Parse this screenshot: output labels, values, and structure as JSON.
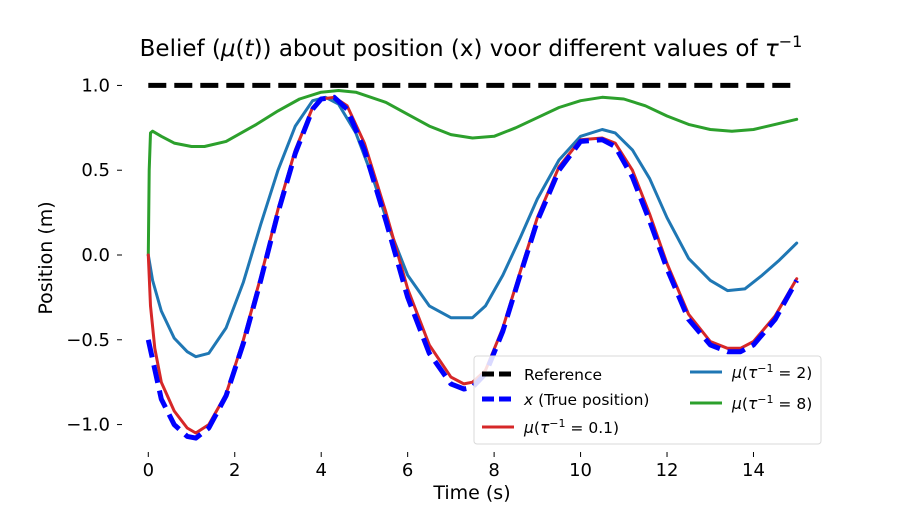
{
  "chart_data": {
    "type": "line",
    "title": "Belief (μ(t)) about position (x) voor different values of τ⁻¹",
    "xlabel": "Time (s)",
    "ylabel": "Position (m)",
    "xlim": [
      -0.4,
      15.4
    ],
    "ylim": [
      -1.15,
      1.15
    ],
    "xticks": [
      0,
      2,
      4,
      6,
      8,
      10,
      12,
      14
    ],
    "xtick_labels": [
      "0",
      "2",
      "4",
      "6",
      "8",
      "10",
      "12",
      "14"
    ],
    "yticks": [
      1.0,
      0.5,
      0.0,
      -0.5,
      -1.0
    ],
    "ytick_labels": [
      "1.0",
      "0.5",
      "0.0",
      "−0.5",
      "−1.0"
    ],
    "grid": false,
    "legend_position": "lower-right",
    "series": [
      {
        "name": "Reference",
        "color": "#000000",
        "style": "dashed",
        "x": [
          0,
          15
        ],
        "y": [
          1.0,
          1.0
        ]
      },
      {
        "name": "x (True position)",
        "color": "#0000ff",
        "style": "dashed",
        "x": [
          0,
          0.3,
          0.6,
          0.9,
          1.1,
          1.4,
          1.8,
          2.2,
          2.6,
          3.0,
          3.4,
          3.8,
          4.0,
          4.3,
          4.6,
          5.0,
          5.5,
          6.0,
          6.5,
          7.0,
          7.3,
          7.5,
          7.8,
          8.2,
          8.6,
          9.0,
          9.5,
          10.0,
          10.5,
          10.8,
          11.2,
          11.6,
          12.0,
          12.5,
          13.0,
          13.4,
          13.7,
          14.0,
          14.5,
          15.0
        ],
        "y": [
          -0.5,
          -0.85,
          -1.0,
          -1.07,
          -1.08,
          -1.02,
          -0.83,
          -0.52,
          -0.15,
          0.25,
          0.6,
          0.86,
          0.92,
          0.93,
          0.86,
          0.62,
          0.2,
          -0.25,
          -0.58,
          -0.76,
          -0.79,
          -0.78,
          -0.7,
          -0.45,
          -0.12,
          0.2,
          0.5,
          0.67,
          0.68,
          0.64,
          0.46,
          0.2,
          -0.08,
          -0.38,
          -0.53,
          -0.57,
          -0.57,
          -0.53,
          -0.38,
          -0.15
        ]
      },
      {
        "name": "μ(τ⁻¹ = 0.1)",
        "color": "#d62728",
        "style": "solid",
        "x": [
          0,
          0.05,
          0.15,
          0.3,
          0.6,
          0.9,
          1.1,
          1.4,
          1.8,
          2.2,
          2.6,
          3.0,
          3.4,
          3.8,
          4.0,
          4.3,
          4.6,
          5.0,
          5.5,
          6.0,
          6.5,
          7.0,
          7.3,
          7.5,
          7.8,
          8.2,
          8.6,
          9.0,
          9.5,
          10.0,
          10.5,
          10.8,
          11.2,
          11.6,
          12.0,
          12.5,
          13.0,
          13.4,
          13.7,
          14.0,
          14.5,
          15.0
        ],
        "y": [
          0.0,
          -0.3,
          -0.55,
          -0.75,
          -0.92,
          -1.02,
          -1.05,
          -1.0,
          -0.82,
          -0.5,
          -0.13,
          0.27,
          0.62,
          0.87,
          0.92,
          0.93,
          0.88,
          0.66,
          0.25,
          -0.2,
          -0.53,
          -0.72,
          -0.76,
          -0.75,
          -0.68,
          -0.43,
          -0.1,
          0.22,
          0.52,
          0.68,
          0.69,
          0.66,
          0.5,
          0.24,
          -0.05,
          -0.35,
          -0.51,
          -0.55,
          -0.55,
          -0.51,
          -0.36,
          -0.14
        ]
      },
      {
        "name": "μ(τ⁻¹ = 2)",
        "color": "#1f77b4",
        "style": "solid",
        "x": [
          0,
          0.1,
          0.3,
          0.6,
          0.9,
          1.1,
          1.4,
          1.8,
          2.2,
          2.6,
          3.0,
          3.4,
          3.8,
          4.1,
          4.4,
          4.8,
          5.2,
          5.6,
          6.0,
          6.5,
          7.0,
          7.5,
          7.8,
          8.2,
          8.6,
          9.0,
          9.5,
          10.0,
          10.5,
          10.8,
          11.2,
          11.6,
          12.0,
          12.5,
          13.0,
          13.4,
          13.8,
          14.2,
          14.6,
          15.0
        ],
        "y": [
          0.0,
          -0.15,
          -0.33,
          -0.49,
          -0.57,
          -0.6,
          -0.58,
          -0.43,
          -0.16,
          0.18,
          0.5,
          0.76,
          0.91,
          0.93,
          0.89,
          0.72,
          0.45,
          0.14,
          -0.12,
          -0.3,
          -0.37,
          -0.37,
          -0.3,
          -0.12,
          0.1,
          0.33,
          0.56,
          0.7,
          0.74,
          0.72,
          0.62,
          0.45,
          0.22,
          -0.02,
          -0.15,
          -0.21,
          -0.2,
          -0.12,
          -0.03,
          0.07
        ]
      },
      {
        "name": "μ(τ⁻¹ = 8)",
        "color": "#2ca02c",
        "style": "solid",
        "x": [
          0,
          0.02,
          0.05,
          0.1,
          0.3,
          0.6,
          1.0,
          1.3,
          1.8,
          2.5,
          3.0,
          3.5,
          4.0,
          4.4,
          4.8,
          5.5,
          6.0,
          6.5,
          7.0,
          7.5,
          8.0,
          8.5,
          9.0,
          9.5,
          10.0,
          10.5,
          11.0,
          11.5,
          12.0,
          12.5,
          13.0,
          13.5,
          14.0,
          14.5,
          15.0
        ],
        "y": [
          0.0,
          0.5,
          0.72,
          0.73,
          0.7,
          0.66,
          0.64,
          0.64,
          0.67,
          0.77,
          0.85,
          0.92,
          0.96,
          0.97,
          0.96,
          0.9,
          0.83,
          0.76,
          0.71,
          0.69,
          0.7,
          0.75,
          0.81,
          0.87,
          0.91,
          0.93,
          0.92,
          0.88,
          0.82,
          0.77,
          0.74,
          0.73,
          0.74,
          0.77,
          0.8
        ]
      }
    ]
  }
}
